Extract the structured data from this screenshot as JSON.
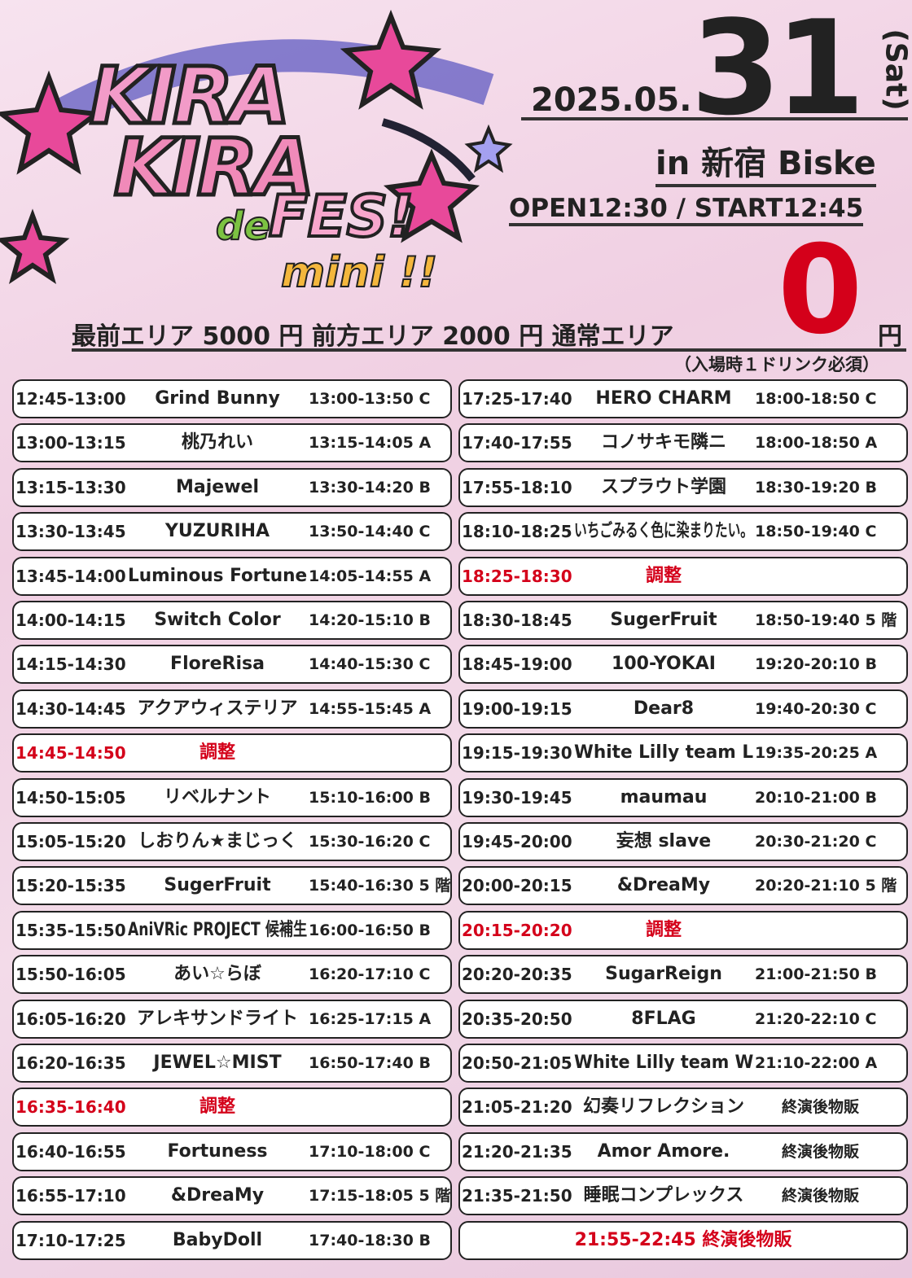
{
  "header": {
    "logo": {
      "line1": "KIRA",
      "line2": "KIRA",
      "de": "de",
      "fes": "FES!",
      "mini": "mini !!"
    },
    "date": {
      "ymd": "2025.05.",
      "day": "31",
      "weekday": "(Sat)"
    },
    "venue": "in 新宿 Biske",
    "times": "OPEN12:30 / START12:45",
    "price": {
      "text": "最前エリア 5000 円 前方エリア 2000 円 通常エリア",
      "zero": "0",
      "yen": "円",
      "note": "（入場時１ドリンク必須）"
    }
  },
  "accent_color": "#d4001a",
  "table": {
    "left": [
      {
        "time": "12:45-13:00",
        "name": "Grind Bunny",
        "benefit": "13:00-13:50 C"
      },
      {
        "time": "13:00-13:15",
        "name": "桃乃れい",
        "benefit": "13:15-14:05 A"
      },
      {
        "time": "13:15-13:30",
        "name": "Majewel",
        "benefit": "13:30-14:20 B"
      },
      {
        "time": "13:30-13:45",
        "name": "YUZURIHA",
        "benefit": "13:50-14:40 C"
      },
      {
        "time": "13:45-14:00",
        "name": "Luminous Fortune",
        "benefit": "14:05-14:55 A"
      },
      {
        "time": "14:00-14:15",
        "name": "Switch Color",
        "benefit": "14:20-15:10 B"
      },
      {
        "time": "14:15-14:30",
        "name": "FloreRisa",
        "benefit": "14:40-15:30 C"
      },
      {
        "time": "14:30-14:45",
        "name": "アクアウィステリア",
        "benefit": "14:55-15:45 A"
      },
      {
        "time": "14:45-14:50",
        "name": "調整",
        "accent": true
      },
      {
        "time": "14:50-15:05",
        "name": "リベルナント",
        "benefit": "15:10-16:00 B"
      },
      {
        "time": "15:05-15:20",
        "name": "しおりん★まじっく",
        "benefit": "15:30-16:20 C"
      },
      {
        "time": "15:20-15:35",
        "name": "SugerFruit",
        "benefit": "15:40-16:30 5 階"
      },
      {
        "time": "15:35-15:50",
        "name": "AniVRic PROJECT 候補生",
        "benefit": "16:00-16:50 B"
      },
      {
        "time": "15:50-16:05",
        "name": "あい☆らぼ",
        "benefit": "16:20-17:10 C"
      },
      {
        "time": "16:05-16:20",
        "name": "アレキサンドライト",
        "benefit": "16:25-17:15 A"
      },
      {
        "time": "16:20-16:35",
        "name": "JEWEL☆MIST",
        "benefit": "16:50-17:40 B"
      },
      {
        "time": "16:35-16:40",
        "name": "調整",
        "accent": true
      },
      {
        "time": "16:40-16:55",
        "name": "Fortuness",
        "benefit": "17:10-18:00 C"
      },
      {
        "time": "16:55-17:10",
        "name": "&DreaMy",
        "benefit": "17:15-18:05 5 階"
      },
      {
        "time": "17:10-17:25",
        "name": "BabyDoll",
        "benefit": "17:40-18:30 B"
      }
    ],
    "right": [
      {
        "time": "17:25-17:40",
        "name": "HERO CHARM",
        "benefit": "18:00-18:50 C"
      },
      {
        "time": "17:40-17:55",
        "name": "コノサキモ隣ニ",
        "benefit": "18:00-18:50 A"
      },
      {
        "time": "17:55-18:10",
        "name": "スプラウト学園",
        "benefit": "18:30-19:20 B"
      },
      {
        "time": "18:10-18:25",
        "name": "いちごみるく色に染まりたい。",
        "benefit": "18:50-19:40 C"
      },
      {
        "time": "18:25-18:30",
        "name": "調整",
        "accent": true
      },
      {
        "time": "18:30-18:45",
        "name": "SugerFruit",
        "benefit": "18:50-19:40 5 階"
      },
      {
        "time": "18:45-19:00",
        "name": "100-YOKAI",
        "benefit": "19:20-20:10 B"
      },
      {
        "time": "19:00-19:15",
        "name": "Dear8",
        "benefit": "19:40-20:30 C"
      },
      {
        "time": "19:15-19:30",
        "name": "White Lilly team L",
        "benefit": "19:35-20:25 A"
      },
      {
        "time": "19:30-19:45",
        "name": "maumau",
        "benefit": "20:10-21:00 B"
      },
      {
        "time": "19:45-20:00",
        "name": "妄想 slave",
        "benefit": "20:30-21:20 C"
      },
      {
        "time": "20:00-20:15",
        "name": "&DreaMy",
        "benefit": "20:20-21:10 5 階"
      },
      {
        "time": "20:15-20:20",
        "name": "調整",
        "accent": true
      },
      {
        "time": "20:20-20:35",
        "name": "SugarReign",
        "benefit": "21:00-21:50 B"
      },
      {
        "time": "20:35-20:50",
        "name": "8FLAG",
        "benefit": "21:20-22:10 C"
      },
      {
        "time": "20:50-21:05",
        "name": "White Lilly team W",
        "benefit": "21:10-22:00 A"
      },
      {
        "time": "21:05-21:20",
        "name": "幻奏リフレクション",
        "benefit": "終演後物販"
      },
      {
        "time": "21:20-21:35",
        "name": "Amor Amore.",
        "benefit": "終演後物販"
      },
      {
        "time": "21:35-21:50",
        "name": "睡眠コンプレックス",
        "benefit": "終演後物販"
      },
      {
        "text": "21:55-22:45 終演後物販",
        "accent": true
      }
    ]
  }
}
